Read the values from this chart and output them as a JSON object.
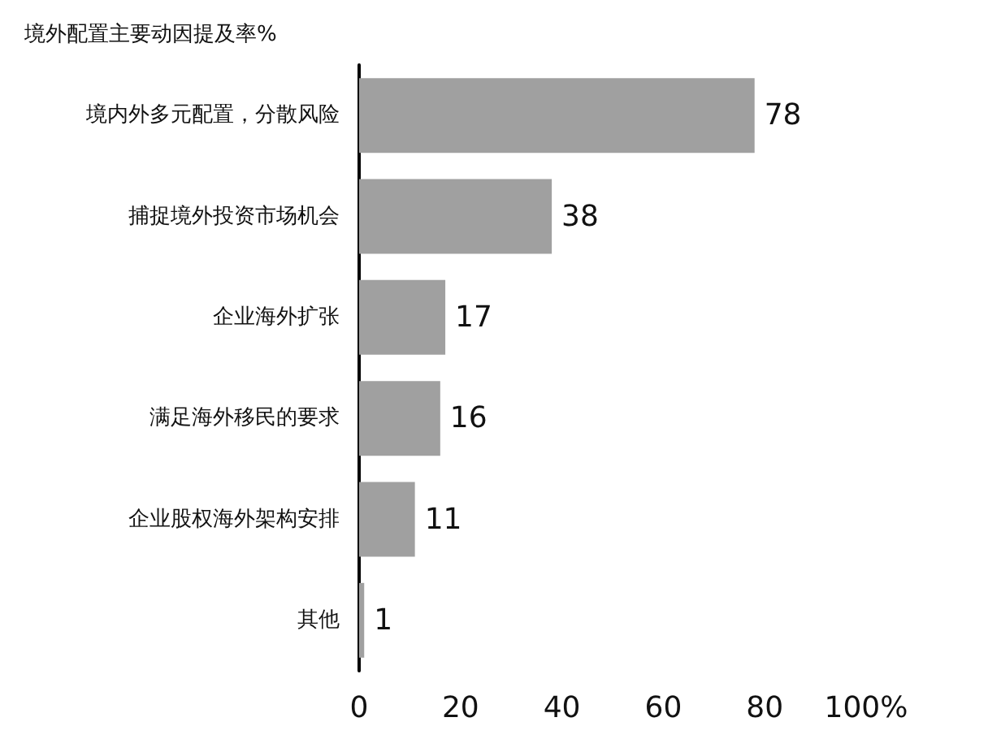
{
  "chart_data": {
    "type": "bar",
    "orientation": "horizontal",
    "title": "境外配置主要动因提及率%",
    "categories": [
      "境内外多元配置，分散风险",
      "捕捉境外投资市场机会",
      "企业海外扩张",
      "满足海外移民的要求",
      "企业股权海外架构安排",
      "其他"
    ],
    "values": [
      78,
      38,
      17,
      16,
      11,
      1
    ],
    "color": "#a0a0a0",
    "xlim": [
      0,
      100
    ],
    "xticks": [
      0,
      20,
      40,
      60,
      80,
      {
        "value": 100,
        "label": "100%"
      }
    ],
    "data_labels": true
  }
}
